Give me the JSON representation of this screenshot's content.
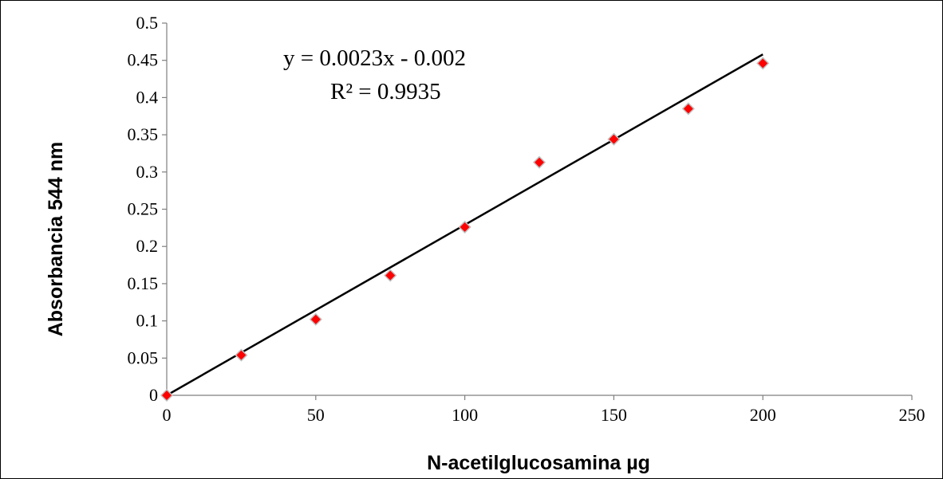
{
  "chart_data": {
    "type": "scatter",
    "xlabel": "N-acetilglucosamina µg",
    "ylabel": "Absorbancia  544 nm",
    "xlim": [
      0,
      250
    ],
    "ylim": [
      0,
      0.5
    ],
    "x_ticks": [
      "0",
      "50",
      "100",
      "150",
      "200",
      "250"
    ],
    "y_ticks": [
      "0",
      "0.05",
      "0.1",
      "0.15",
      "0.2",
      "0.25",
      "0.3",
      "0.35",
      "0.4",
      "0.45",
      "0.5"
    ],
    "grid": false,
    "legend": "none",
    "series": [
      {
        "x": [
          0,
          25,
          50,
          75,
          100,
          125,
          150,
          175,
          200
        ],
        "y": [
          0,
          0.054,
          0.102,
          0.161,
          0.226,
          0.313,
          0.344,
          0.385,
          0.446
        ],
        "color": "#ff0000"
      }
    ],
    "trendline": {
      "slope": 0.0023,
      "intercept": -0.002,
      "x_range": [
        0,
        200
      ],
      "color": "#000000"
    },
    "annotations": {
      "equation": "y = 0.0023x - 0.002",
      "r_squared": "R² = 0.9935"
    }
  }
}
